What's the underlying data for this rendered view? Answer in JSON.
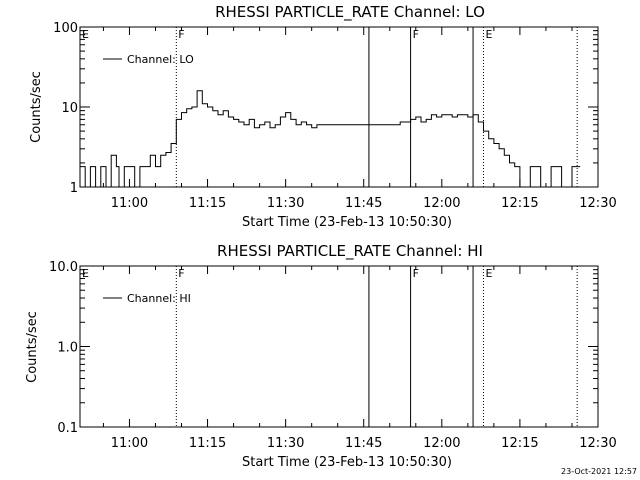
{
  "timestamp": "23-Oct-2021 12:57",
  "chart_data": [
    {
      "type": "line",
      "title": "RHESSI PARTICLE_RATE Channel: LO",
      "xlabel": "Start Time (23-Feb-13 10:50:30)",
      "ylabel": "Counts/sec",
      "yscale": "log",
      "xlim": [
        "10:50:30",
        "12:30:00"
      ],
      "ylim": [
        1,
        100
      ],
      "x_ticks": [
        "11:00",
        "11:15",
        "11:30",
        "11:45",
        "12:00",
        "12:15",
        "12:30"
      ],
      "y_ticks": [
        "1",
        "10",
        "100"
      ],
      "grid": false,
      "legend_position": "top-left",
      "legend": [
        "Channel: LO"
      ],
      "markers": [
        {
          "time": "11:09",
          "label": "F",
          "style": "dotted"
        },
        {
          "time": "11:46",
          "label": "",
          "style": "solid"
        },
        {
          "time": "11:54",
          "label": "F",
          "style": "solid"
        },
        {
          "time": "12:06",
          "label": "",
          "style": "solid"
        },
        {
          "time": "12:08",
          "label": "E",
          "style": "dotted"
        },
        {
          "time": "12:26",
          "label": "",
          "style": "dotted"
        }
      ],
      "edge_label": "E",
      "series": [
        {
          "name": "Channel: LO",
          "x": [
            "10:50:30",
            "10:51:30",
            "10:52:30",
            "10:53:30",
            "10:54:30",
            "10:55:30",
            "10:56:30",
            "10:57:30",
            "10:58:00",
            "10:59:00",
            "11:00:00",
            "11:01:00",
            "11:02:00",
            "11:03:00",
            "11:04:00",
            "11:05:00",
            "11:06:00",
            "11:07:00",
            "11:08:00",
            "11:09:00",
            "11:10:00",
            "11:11:00",
            "11:12:00",
            "11:13:00",
            "11:14:00",
            "11:15:00",
            "11:16:00",
            "11:17:00",
            "11:18:00",
            "11:19:00",
            "11:20:00",
            "11:21:00",
            "11:22:00",
            "11:23:00",
            "11:24:00",
            "11:25:00",
            "11:26:00",
            "11:27:00",
            "11:28:00",
            "11:29:00",
            "11:30:00",
            "11:31:00",
            "11:32:00",
            "11:33:00",
            "11:34:00",
            "11:35:00",
            "11:36:00",
            "11:38:00",
            "11:40:00",
            "11:42:00",
            "11:44:00",
            "11:46:00",
            "11:48:00",
            "11:50:00",
            "11:52:00",
            "11:54:00",
            "11:55:00",
            "11:56:00",
            "11:57:00",
            "11:58:00",
            "11:59:00",
            "12:00:00",
            "12:01:00",
            "12:02:00",
            "12:03:00",
            "12:04:00",
            "12:05:00",
            "12:06:00",
            "12:07:00",
            "12:08:00",
            "12:09:00",
            "12:10:00",
            "12:11:00",
            "12:12:00",
            "12:13:00",
            "12:14:00",
            "12:15:00",
            "12:17:00",
            "12:19:00",
            "12:21:00",
            "12:23:00",
            "12:25:00",
            "12:26:00"
          ],
          "values": [
            1.8,
            1.0,
            1.8,
            1.0,
            1.8,
            1.0,
            2.5,
            1.8,
            1.0,
            1.8,
            1.8,
            1.0,
            1.8,
            1.8,
            2.5,
            1.8,
            2.5,
            2.7,
            3.5,
            7.0,
            8.5,
            9.5,
            10.0,
            16.0,
            11.0,
            10.0,
            9.0,
            8.0,
            9.0,
            7.5,
            7.0,
            6.5,
            6.0,
            7.0,
            5.5,
            6.0,
            6.5,
            5.5,
            6.0,
            7.5,
            8.5,
            7.0,
            6.0,
            6.5,
            6.0,
            5.5,
            6.0,
            6.0,
            6.0,
            6.0,
            6.0,
            6.0,
            6.0,
            6.0,
            6.5,
            7.0,
            7.5,
            6.5,
            7.0,
            8.0,
            7.5,
            8.0,
            8.0,
            7.5,
            8.0,
            8.0,
            7.5,
            8.0,
            6.5,
            5.0,
            4.0,
            3.5,
            3.0,
            2.5,
            2.0,
            1.8,
            1.0,
            1.8,
            1.0,
            1.8,
            1.0,
            1.8,
            1.8
          ]
        }
      ]
    },
    {
      "type": "line",
      "title": "RHESSI PARTICLE_RATE Channel: HI",
      "xlabel": "Start Time (23-Feb-13 10:50:30)",
      "ylabel": "Counts/sec",
      "yscale": "log",
      "xlim": [
        "10:50:30",
        "12:30:00"
      ],
      "ylim": [
        0.1,
        10.0
      ],
      "x_ticks": [
        "11:00",
        "11:15",
        "11:30",
        "11:45",
        "12:00",
        "12:15",
        "12:30"
      ],
      "y_ticks": [
        "0.1",
        "1.0",
        "10.0"
      ],
      "grid": false,
      "legend_position": "top-left",
      "legend": [
        "Channel: HI"
      ],
      "markers": [
        {
          "time": "11:09",
          "label": "F",
          "style": "dotted"
        },
        {
          "time": "11:46",
          "label": "",
          "style": "solid"
        },
        {
          "time": "11:54",
          "label": "F",
          "style": "solid"
        },
        {
          "time": "12:06",
          "label": "",
          "style": "solid"
        },
        {
          "time": "12:08",
          "label": "E",
          "style": "dotted"
        },
        {
          "time": "12:26",
          "label": "",
          "style": "dotted"
        }
      ],
      "edge_label": "E",
      "series": [
        {
          "name": "Channel: HI",
          "x": [],
          "values": []
        }
      ]
    }
  ]
}
